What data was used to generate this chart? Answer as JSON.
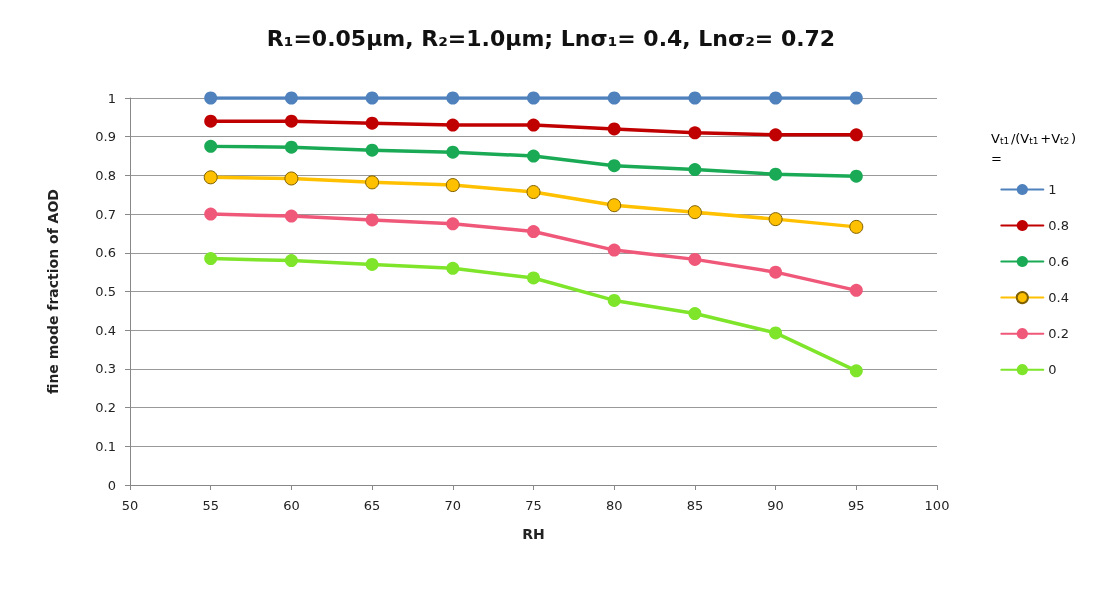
{
  "chart_data": {
    "type": "line",
    "title": "R₁=0.05µm, R₂=1.0µm; Lnσ₁= 0.4, Lnσ₂= 0.72",
    "xlabel": "RH",
    "ylabel": "fine mode fraction of AOD",
    "legend_title": "V$_{t1}$/(V$_{t1}$+V$_{t2}$) =",
    "x": [
      55,
      60,
      65,
      70,
      75,
      80,
      85,
      90,
      95
    ],
    "series": [
      {
        "name": "1",
        "color": "#4f81bd",
        "values": [
          1,
          1,
          1,
          1,
          1,
          1,
          1,
          1,
          1
        ]
      },
      {
        "name": "0.8",
        "color": "#c00000",
        "values": [
          0.94,
          0.94,
          0.935,
          0.93,
          0.93,
          0.92,
          0.91,
          0.905,
          0.905
        ]
      },
      {
        "name": "0.6",
        "color": "#1aaa55",
        "values": [
          0.875,
          0.873,
          0.865,
          0.86,
          0.85,
          0.825,
          0.815,
          0.803,
          0.798
        ]
      },
      {
        "name": "0.4",
        "color": "#ffc000",
        "values": [
          0.795,
          0.792,
          0.782,
          0.775,
          0.757,
          0.723,
          0.705,
          0.687,
          0.667
        ]
      },
      {
        "name": "0.2",
        "color": "#f0587a",
        "values": [
          0.7,
          0.695,
          0.685,
          0.675,
          0.655,
          0.607,
          0.583,
          0.55,
          0.503
        ]
      },
      {
        "name": "0",
        "color": "#7ee52a",
        "values": [
          0.585,
          0.58,
          0.57,
          0.56,
          0.535,
          0.477,
          0.443,
          0.393,
          0.295
        ]
      }
    ],
    "xlim": [
      50,
      100
    ],
    "xticks": [
      50,
      55,
      60,
      65,
      70,
      75,
      80,
      85,
      90,
      95,
      100
    ],
    "ylim": [
      0,
      1
    ],
    "yticks": [
      0,
      0.1,
      0.2,
      0.3,
      0.4,
      0.5,
      0.6,
      0.7,
      0.8,
      0.9,
      1
    ],
    "grid": "y",
    "legend": "right",
    "marker": "circle",
    "line_style": "solid"
  }
}
